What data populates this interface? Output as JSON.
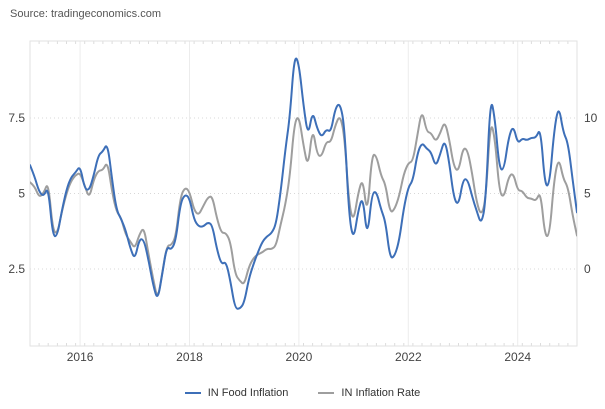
{
  "source": {
    "label": "Source: tradingeconomics.com"
  },
  "legend": {
    "items": [
      {
        "label": "IN Food Inflation",
        "color": "#3D6FB8"
      },
      {
        "label": "IN Inflation Rate",
        "color": "#9E9E9E"
      }
    ]
  },
  "chart_data": {
    "type": "line",
    "title": "",
    "x_interval": "monthly",
    "x_range_start": "Feb 2015",
    "x_range_end": "Feb 2025",
    "x_year_ticks": [
      2016,
      2018,
      2020,
      2022,
      2024
    ],
    "grid": true,
    "legend_position": "bottom-center",
    "axes": {
      "left": {
        "ticks": [
          "2.5",
          "5",
          "7.5"
        ],
        "tick_values": [
          2.5,
          5,
          7.5
        ],
        "min": -0.05,
        "max": 10.05,
        "series": "IN Inflation Rate"
      },
      "right": {
        "ticks": [
          "0",
          "5",
          "10"
        ],
        "tick_values": [
          0,
          5,
          10
        ],
        "min": -5.1,
        "max": 15.1,
        "series": "IN Food Inflation"
      }
    },
    "series": [
      {
        "name": "IN Food Inflation",
        "axis": "right",
        "color": "#3D6FB8",
        "values": [
          6.88,
          6.14,
          5.11,
          4.8,
          5.48,
          2.15,
          2.2,
          3.88,
          5.25,
          6.07,
          6.4,
          6.85,
          5.3,
          5.21,
          6.21,
          7.55,
          7.79,
          8.35,
          5.91,
          3.88,
          3.32,
          2.56,
          1.37,
          0.61,
          2.01,
          1.93,
          0.61,
          -1.05,
          -2.12,
          -0.36,
          1.52,
          1.25,
          1.9,
          4.35,
          4.96,
          4.7,
          3.26,
          2.81,
          2.8,
          3.1,
          2.91,
          1.3,
          0.29,
          0.51,
          -0.86,
          -2.61,
          -2.65,
          -2.24,
          -0.66,
          0.3,
          1.1,
          1.83,
          2.17,
          2.36,
          2.99,
          5.11,
          7.89,
          10.01,
          14.19,
          13.63,
          10.81,
          8.76,
          10.49,
          9.28,
          8.72,
          9.27,
          9.05,
          10.68,
          11.0,
          9.5,
          3.41,
          1.89,
          3.87,
          4.87,
          1.96,
          5.01,
          5.15,
          3.96,
          3.11,
          0.68,
          0.85,
          1.87,
          4.05,
          5.43,
          5.85,
          7.68,
          8.38,
          7.97,
          7.75,
          6.75,
          7.62,
          8.6,
          7.01,
          4.67,
          4.19,
          5.94,
          5.95,
          4.79,
          3.84,
          2.91,
          4.49,
          11.51,
          9.94,
          6.56,
          6.61,
          8.7,
          9.53,
          8.3,
          8.66,
          8.52,
          8.7,
          8.69,
          9.36,
          5.42,
          5.66,
          9.24,
          10.87,
          9.04,
          8.39,
          6.02,
          3.75
        ]
      },
      {
        "name": "IN Inflation Rate",
        "axis": "left",
        "color": "#9E9E9E",
        "values": [
          5.37,
          5.25,
          4.87,
          5.01,
          5.4,
          3.78,
          3.66,
          4.41,
          5.0,
          5.41,
          5.61,
          5.69,
          5.26,
          4.83,
          5.47,
          5.76,
          5.77,
          6.07,
          5.05,
          4.39,
          4.2,
          3.63,
          3.41,
          3.17,
          3.65,
          3.89,
          2.99,
          2.18,
          1.46,
          2.36,
          3.28,
          3.28,
          3.58,
          4.88,
          5.21,
          5.07,
          4.44,
          4.28,
          4.58,
          4.87,
          4.92,
          4.17,
          3.69,
          3.7,
          3.38,
          2.33,
          2.11,
          1.97,
          2.57,
          2.86,
          2.99,
          3.05,
          3.18,
          3.15,
          3.28,
          3.99,
          4.62,
          5.54,
          7.35,
          7.59,
          6.58,
          5.84,
          7.22,
          6.27,
          6.23,
          6.73,
          6.69,
          7.27,
          7.61,
          6.93,
          4.59,
          4.06,
          5.03,
          5.52,
          4.23,
          6.3,
          6.26,
          5.59,
          5.3,
          4.35,
          4.48,
          4.91,
          5.66,
          6.01,
          6.07,
          6.95,
          7.79,
          7.04,
          7.01,
          6.71,
          7.0,
          7.41,
          6.77,
          5.88,
          5.72,
          6.52,
          6.44,
          5.66,
          4.7,
          4.25,
          4.81,
          7.44,
          6.83,
          5.02,
          4.87,
          5.55,
          5.69,
          5.1,
          5.09,
          4.85,
          4.83,
          4.75,
          5.08,
          3.54,
          3.65,
          5.49,
          6.21,
          5.48,
          5.22,
          4.31,
          3.61
        ]
      }
    ],
    "colors": {
      "plot_border": "#E2E2E2",
      "year_gridline": "#ECECEC",
      "h_gridline": "#D8D8D8",
      "axis_text": "#444444",
      "minor_tick": "#DCDCDC"
    }
  }
}
